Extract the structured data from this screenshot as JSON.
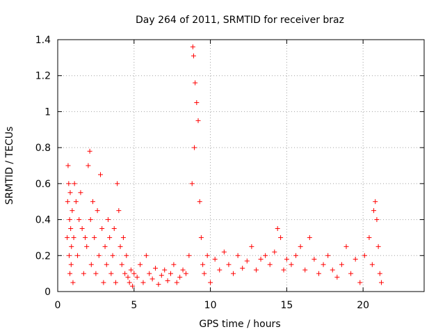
{
  "chart_data": {
    "type": "scatter",
    "title": "Day 264 of 2011, SRMTID for receiver braz",
    "xlabel": "GPS time / hours",
    "ylabel": "SRMTID / TECUs",
    "xlim": [
      0,
      24
    ],
    "ylim": [
      0,
      1.4
    ],
    "xticks": [
      0,
      5,
      10,
      15,
      20
    ],
    "xtick_labels": [
      "0",
      "5",
      "10",
      "15",
      "20"
    ],
    "yticks": [
      0,
      0.2,
      0.4,
      0.6,
      0.8,
      1,
      1.2,
      1.4
    ],
    "ytick_labels": [
      "0",
      "0.2",
      "0.4",
      "0.6",
      "0.8",
      "1",
      "1.2",
      "1.4"
    ],
    "grid": true,
    "marker": "plus",
    "color": "#ff0000",
    "series": [
      {
        "x": [
          0.62,
          0.65,
          0.68,
          0.72,
          0.75,
          0.78,
          0.8,
          0.82,
          0.85,
          0.88,
          0.9,
          0.95,
          1.0,
          1.05,
          1.1,
          1.2,
          1.3,
          1.4,
          1.5,
          1.6,
          1.7,
          1.8,
          1.9,
          2.0,
          2.1,
          2.15,
          2.2,
          2.3,
          2.4,
          2.5,
          2.6,
          2.7,
          2.8,
          2.9,
          3.0,
          3.1,
          3.2,
          3.3,
          3.4,
          3.5,
          3.6,
          3.7,
          3.8,
          3.9,
          4.0,
          4.1,
          4.2,
          4.3,
          4.4,
          4.5,
          4.6,
          4.7,
          4.8,
          4.9,
          5.0,
          5.2,
          5.4,
          5.6,
          5.8,
          6.0,
          6.2,
          6.4,
          6.6,
          6.8,
          7.0,
          7.2,
          7.4,
          7.6,
          7.8,
          8.0,
          8.2,
          8.4,
          8.6,
          8.8,
          8.85,
          8.9,
          8.95,
          9.0,
          9.1,
          9.2,
          9.3,
          9.4,
          9.5,
          9.6,
          9.8,
          10.0,
          10.3,
          10.6,
          10.9,
          11.2,
          11.5,
          11.8,
          12.1,
          12.4,
          12.7,
          13.0,
          13.3,
          13.6,
          13.9,
          14.2,
          14.4,
          14.6,
          14.8,
          15.0,
          15.3,
          15.6,
          15.9,
          16.2,
          16.5,
          16.8,
          17.1,
          17.4,
          17.7,
          18.0,
          18.3,
          18.6,
          18.9,
          19.2,
          19.5,
          19.8,
          20.1,
          20.4,
          20.6,
          20.7,
          20.8,
          20.9,
          21.0,
          21.1,
          21.2
        ],
        "y": [
          0.3,
          0.5,
          0.7,
          0.6,
          0.2,
          0.4,
          0.1,
          0.55,
          0.35,
          0.15,
          0.25,
          0.45,
          0.05,
          0.3,
          0.6,
          0.5,
          0.2,
          0.4,
          0.55,
          0.35,
          0.1,
          0.3,
          0.25,
          0.7,
          0.78,
          0.4,
          0.15,
          0.5,
          0.3,
          0.1,
          0.45,
          0.2,
          0.65,
          0.35,
          0.05,
          0.25,
          0.15,
          0.4,
          0.3,
          0.1,
          0.2,
          0.35,
          0.05,
          0.6,
          0.45,
          0.25,
          0.15,
          0.3,
          0.1,
          0.2,
          0.08,
          0.05,
          0.12,
          0.03,
          0.1,
          0.08,
          0.15,
          0.05,
          0.2,
          0.1,
          0.07,
          0.13,
          0.04,
          0.09,
          0.12,
          0.06,
          0.1,
          0.15,
          0.05,
          0.08,
          0.12,
          0.1,
          0.2,
          0.6,
          1.36,
          1.31,
          0.8,
          1.16,
          1.05,
          0.95,
          0.5,
          0.3,
          0.15,
          0.1,
          0.2,
          0.05,
          0.18,
          0.12,
          0.22,
          0.15,
          0.1,
          0.2,
          0.13,
          0.17,
          0.25,
          0.12,
          0.18,
          0.2,
          0.15,
          0.22,
          0.35,
          0.3,
          0.12,
          0.18,
          0.15,
          0.2,
          0.25,
          0.12,
          0.3,
          0.18,
          0.1,
          0.15,
          0.2,
          0.12,
          0.08,
          0.15,
          0.25,
          0.1,
          0.18,
          0.05,
          0.2,
          0.3,
          0.15,
          0.45,
          0.5,
          0.4,
          0.25,
          0.1,
          0.05
        ]
      }
    ]
  }
}
